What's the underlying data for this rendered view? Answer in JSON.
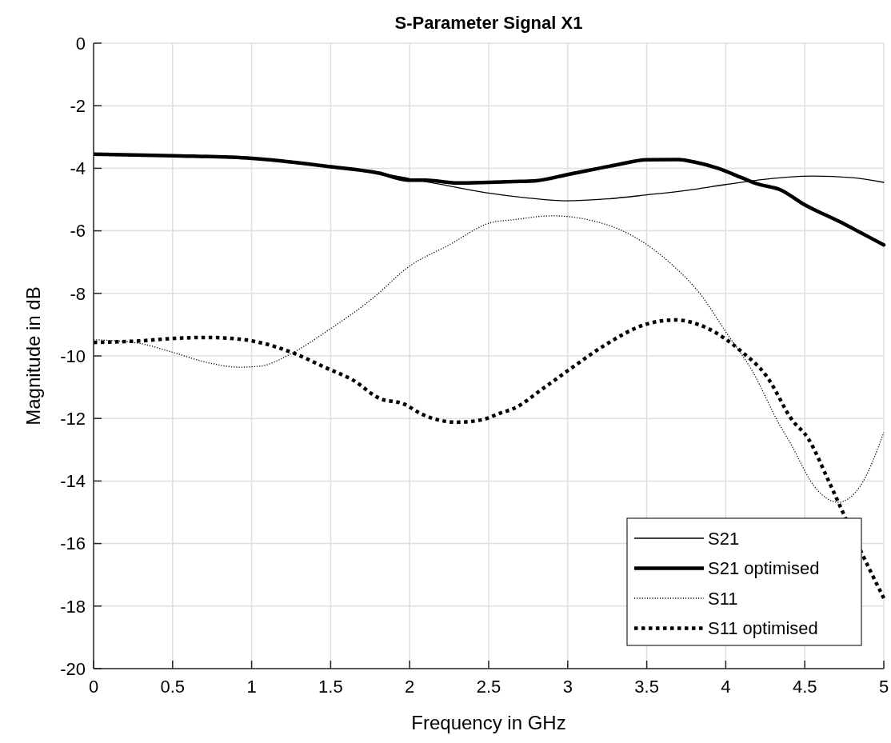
{
  "chart_data": {
    "type": "line",
    "title": "S-Parameter Signal X1",
    "xlabel": "Frequency in GHz",
    "ylabel": "Magnitude in dB",
    "xlim": [
      0,
      5
    ],
    "ylim": [
      -20,
      0
    ],
    "xticks": [
      0,
      0.5,
      1,
      1.5,
      2,
      2.5,
      3,
      3.5,
      4,
      4.5,
      5
    ],
    "yticks": [
      -20,
      -18,
      -16,
      -14,
      -12,
      -10,
      -8,
      -6,
      -4,
      -2,
      0
    ],
    "grid": true,
    "legend": "bottom right",
    "series": [
      {
        "name": "S21",
        "color": "#000000",
        "line_style": "solid",
        "x": [
          0,
          0.5,
          1,
          1.5,
          1.8,
          2.0,
          2.2,
          2.48,
          2.75,
          2.99,
          3.25,
          3.5,
          3.76,
          4.0,
          4.25,
          4.55,
          4.8,
          5.0
        ],
        "values": [
          -3.55,
          -3.6,
          -3.68,
          -3.95,
          -4.15,
          -4.33,
          -4.52,
          -4.78,
          -4.95,
          -5.04,
          -4.98,
          -4.85,
          -4.7,
          -4.52,
          -4.35,
          -4.25,
          -4.3,
          -4.45
        ]
      },
      {
        "name": "S21 optimised",
        "color": "#000000",
        "line_style": "solid",
        "x": [
          0,
          0.5,
          1,
          1.5,
          1.8,
          2.0,
          2.1,
          2.3,
          2.5,
          2.7,
          2.8,
          3.0,
          3.3,
          3.5,
          3.7,
          3.8,
          3.95,
          4.1,
          4.2,
          4.35,
          4.49,
          4.73,
          4.85,
          5.0
        ],
        "values": [
          -3.55,
          -3.6,
          -3.68,
          -3.95,
          -4.15,
          -4.38,
          -4.38,
          -4.47,
          -4.45,
          -4.42,
          -4.4,
          -4.2,
          -3.9,
          -3.73,
          -3.72,
          -3.8,
          -4.0,
          -4.3,
          -4.5,
          -4.7,
          -5.14,
          -5.73,
          -6.05,
          -6.45
        ]
      },
      {
        "name": "S11",
        "color": "#000000",
        "line_style": "dotted",
        "x": [
          0,
          0.29,
          0.51,
          0.71,
          0.92,
          1.05,
          1.26,
          1.47,
          1.78,
          1.98,
          2.25,
          2.52,
          2.65,
          2.9,
          3.16,
          3.41,
          3.66,
          3.84,
          4.0,
          4.17,
          4.34,
          4.41,
          4.56,
          4.71,
          4.85,
          5.0
        ],
        "values": [
          -9.48,
          -9.6,
          -9.9,
          -10.2,
          -10.36,
          -10.33,
          -9.9,
          -9.23,
          -8.1,
          -7.2,
          -6.45,
          -5.73,
          -5.65,
          -5.52,
          -5.68,
          -6.16,
          -7.08,
          -8.03,
          -9.23,
          -10.5,
          -12.2,
          -12.8,
          -14.17,
          -14.68,
          -14.17,
          -12.45
        ]
      },
      {
        "name": "S11 optimised",
        "color": "#000000",
        "line_style": "dotted",
        "x": [
          0,
          0.29,
          0.51,
          0.71,
          0.92,
          1.05,
          1.26,
          1.47,
          1.64,
          1.81,
          1.96,
          2.08,
          2.3,
          2.45,
          2.59,
          2.65,
          2.85,
          3.04,
          3.24,
          3.5,
          3.68,
          3.89,
          4.09,
          4.26,
          4.42,
          4.52,
          4.65,
          4.75,
          4.86,
          5.0
        ],
        "values": [
          -9.57,
          -9.52,
          -9.44,
          -9.41,
          -9.46,
          -9.57,
          -9.9,
          -10.38,
          -10.77,
          -11.36,
          -11.53,
          -11.87,
          -12.12,
          -12.05,
          -11.8,
          -11.7,
          -11.02,
          -10.33,
          -9.64,
          -8.98,
          -8.85,
          -9.13,
          -9.82,
          -10.66,
          -12.05,
          -12.63,
          -13.99,
          -15.1,
          -16.3,
          -17.75
        ]
      }
    ]
  }
}
